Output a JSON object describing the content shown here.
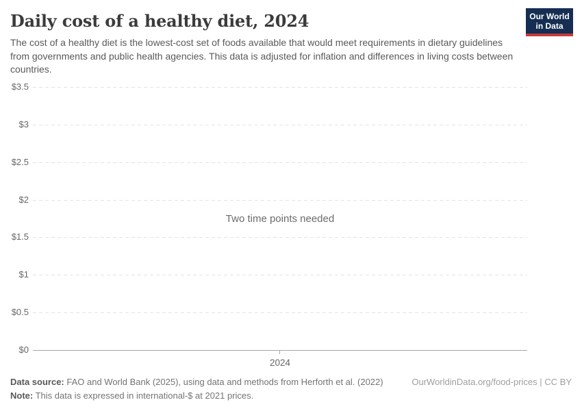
{
  "header": {
    "title": "Daily cost of a healthy diet, 2024",
    "subtitle": "The cost of a healthy diet is the lowest-cost set of foods available that would meet requirements in dietary guidelines from governments and public health agencies. This data is adjusted for inflation and differences in living costs between countries.",
    "logo": {
      "line1": "Our World",
      "line2": "in Data"
    }
  },
  "chart_data": {
    "type": "line",
    "title": "Daily cost of a healthy diet, 2024",
    "message": "Two time points needed",
    "x": [
      2024
    ],
    "x_ticks": [
      "2024"
    ],
    "series": [],
    "xlabel": "",
    "ylabel": "",
    "ylim": [
      0,
      3.5
    ],
    "y_ticks": [
      "$3.5",
      "$3",
      "$2.5",
      "$2",
      "$1.5",
      "$1",
      "$0.5",
      "$0"
    ],
    "grid": true,
    "legend": "none"
  },
  "footer": {
    "source_label": "Data source:",
    "source_text": " FAO and World Bank (2025), using data and methods from Herforth et al. (2022)",
    "note_label": "Note:",
    "note_text": " This data is expressed in international-$ at 2021 prices.",
    "license_text": "OurWorldinData.org/food-prices | CC BY"
  },
  "colors": {
    "logo_background": "#152e52",
    "logo_stripe": "#c53b3b",
    "title_text": "#3b3b3b",
    "subtitle_text": "#595959",
    "gridline": "#e3e3e3",
    "axis_line": "#a6a6a6",
    "tick_text": "#666666",
    "message_text": "#6b6b6b",
    "footer_text": "#737373",
    "license_text": "#9e9e9e"
  }
}
